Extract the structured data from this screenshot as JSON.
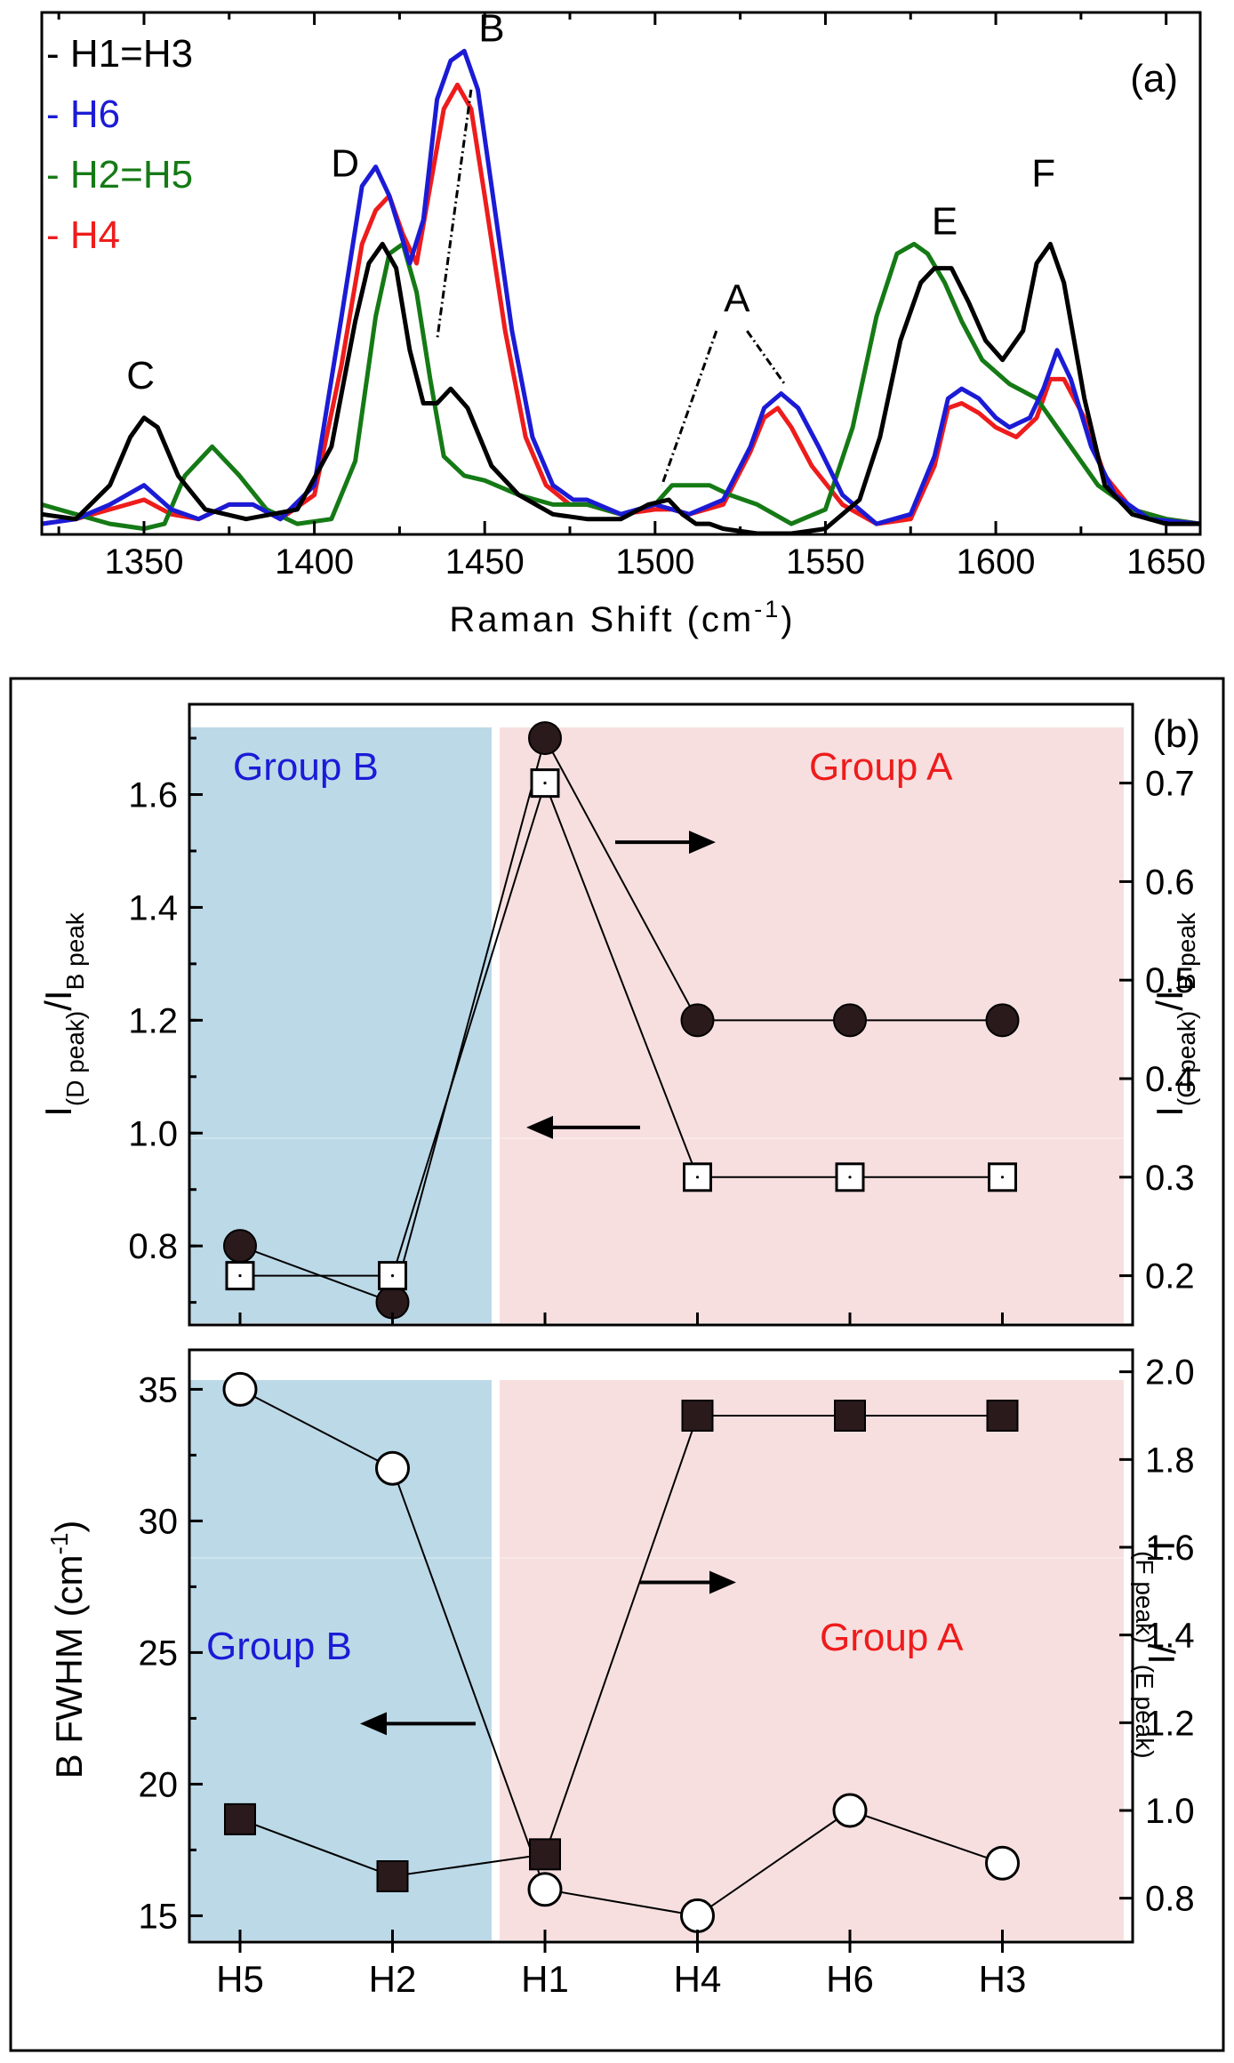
{
  "chart_data": [
    {
      "type": "line",
      "panel_label": "(a)",
      "title": "",
      "xlabel": "Raman Shift (cm",
      "xlabel_sup": "-1",
      "xlabel_end": ")",
      "ylabel": "",
      "xlim": [
        1320,
        1660
      ],
      "ylim": [
        0,
        1.08
      ],
      "x_ticks": [
        1350,
        1400,
        1450,
        1500,
        1550,
        1600,
        1650
      ],
      "legend_position": "top-left",
      "series": [
        {
          "name": "H1=H3",
          "legend": "- H1=H3",
          "color": "#000000",
          "x": [
            1320,
            1330,
            1340,
            1346,
            1350,
            1354,
            1360,
            1368,
            1380,
            1395,
            1405,
            1412,
            1416,
            1420,
            1424,
            1428,
            1432,
            1436,
            1440,
            1445,
            1452,
            1460,
            1470,
            1480,
            1490,
            1498,
            1504,
            1508,
            1512,
            1516,
            1520,
            1530,
            1540,
            1550,
            1560,
            1566,
            1572,
            1578,
            1582,
            1587,
            1592,
            1597,
            1602,
            1608,
            1612,
            1616,
            1620,
            1626,
            1632,
            1640,
            1650,
            1660
          ],
          "y": [
            0.04,
            0.03,
            0.1,
            0.2,
            0.24,
            0.22,
            0.12,
            0.05,
            0.03,
            0.05,
            0.18,
            0.44,
            0.56,
            0.6,
            0.55,
            0.38,
            0.27,
            0.27,
            0.3,
            0.26,
            0.14,
            0.08,
            0.04,
            0.03,
            0.03,
            0.06,
            0.07,
            0.04,
            0.02,
            0.02,
            0.01,
            0.0,
            0.0,
            0.01,
            0.07,
            0.2,
            0.4,
            0.52,
            0.55,
            0.55,
            0.48,
            0.4,
            0.36,
            0.42,
            0.56,
            0.6,
            0.52,
            0.28,
            0.1,
            0.04,
            0.02,
            0.02
          ]
        },
        {
          "name": "H6",
          "legend": "- H6",
          "color": "#1b1bd6",
          "x": [
            1320,
            1330,
            1340,
            1350,
            1358,
            1366,
            1375,
            1382,
            1390,
            1400,
            1408,
            1414,
            1418,
            1422,
            1428,
            1432,
            1436,
            1440,
            1444,
            1448,
            1452,
            1458,
            1464,
            1470,
            1476,
            1480,
            1490,
            1500,
            1505,
            1510,
            1520,
            1528,
            1532,
            1537,
            1542,
            1548,
            1555,
            1565,
            1575,
            1582,
            1586,
            1590,
            1595,
            1600,
            1604,
            1610,
            1614,
            1618,
            1622,
            1628,
            1635,
            1645,
            1660
          ],
          "y": [
            0.02,
            0.03,
            0.06,
            0.1,
            0.05,
            0.03,
            0.06,
            0.06,
            0.03,
            0.1,
            0.45,
            0.72,
            0.76,
            0.7,
            0.56,
            0.65,
            0.9,
            0.98,
            1.0,
            0.92,
            0.72,
            0.42,
            0.2,
            0.1,
            0.07,
            0.07,
            0.04,
            0.06,
            0.05,
            0.04,
            0.07,
            0.18,
            0.26,
            0.29,
            0.26,
            0.18,
            0.08,
            0.02,
            0.04,
            0.16,
            0.28,
            0.3,
            0.28,
            0.24,
            0.22,
            0.24,
            0.3,
            0.38,
            0.32,
            0.18,
            0.08,
            0.03,
            0.02
          ]
        },
        {
          "name": "H2=H5",
          "legend": "- H2=H5",
          "color": "#157a15",
          "x": [
            1320,
            1330,
            1340,
            1350,
            1356,
            1362,
            1370,
            1378,
            1386,
            1395,
            1405,
            1412,
            1418,
            1422,
            1426,
            1430,
            1434,
            1438,
            1444,
            1450,
            1460,
            1470,
            1480,
            1490,
            1500,
            1505,
            1510,
            1516,
            1522,
            1530,
            1540,
            1550,
            1558,
            1565,
            1571,
            1576,
            1580,
            1585,
            1590,
            1596,
            1604,
            1612,
            1620,
            1630,
            1640,
            1650,
            1660
          ],
          "y": [
            0.06,
            0.04,
            0.02,
            0.01,
            0.02,
            0.12,
            0.18,
            0.12,
            0.05,
            0.02,
            0.03,
            0.15,
            0.45,
            0.58,
            0.6,
            0.5,
            0.32,
            0.16,
            0.12,
            0.11,
            0.08,
            0.06,
            0.06,
            0.04,
            0.06,
            0.1,
            0.1,
            0.1,
            0.08,
            0.06,
            0.02,
            0.05,
            0.22,
            0.45,
            0.58,
            0.6,
            0.58,
            0.52,
            0.44,
            0.36,
            0.31,
            0.28,
            0.2,
            0.1,
            0.05,
            0.03,
            0.02
          ]
        },
        {
          "name": "H4",
          "legend": "- H4",
          "color": "#ee1c1c",
          "x": [
            1320,
            1330,
            1340,
            1350,
            1358,
            1366,
            1375,
            1382,
            1390,
            1400,
            1408,
            1414,
            1418,
            1422,
            1426,
            1430,
            1434,
            1438,
            1442,
            1446,
            1450,
            1456,
            1462,
            1468,
            1475,
            1480,
            1490,
            1500,
            1505,
            1510,
            1520,
            1528,
            1532,
            1536,
            1540,
            1546,
            1555,
            1565,
            1575,
            1582,
            1586,
            1590,
            1595,
            1600,
            1606,
            1612,
            1616,
            1620,
            1626,
            1632,
            1640,
            1650,
            1660
          ],
          "y": [
            0.02,
            0.03,
            0.05,
            0.07,
            0.04,
            0.03,
            0.06,
            0.06,
            0.03,
            0.08,
            0.35,
            0.6,
            0.67,
            0.7,
            0.62,
            0.56,
            0.72,
            0.88,
            0.93,
            0.88,
            0.7,
            0.42,
            0.2,
            0.1,
            0.06,
            0.06,
            0.04,
            0.05,
            0.05,
            0.04,
            0.06,
            0.17,
            0.24,
            0.26,
            0.22,
            0.14,
            0.06,
            0.02,
            0.03,
            0.14,
            0.26,
            0.27,
            0.25,
            0.22,
            0.2,
            0.24,
            0.32,
            0.32,
            0.24,
            0.12,
            0.05,
            0.03,
            0.02
          ]
        }
      ],
      "annotations": [
        {
          "text": "C",
          "x": 1349,
          "y": 0.3
        },
        {
          "text": "D",
          "x": 1409,
          "y": 0.74
        },
        {
          "text": "B",
          "x": 1452,
          "y": 1.02
        },
        {
          "text": "A",
          "x": 1524,
          "y": 0.46
        },
        {
          "text": "E",
          "x": 1585,
          "y": 0.62
        },
        {
          "text": "F",
          "x": 1614,
          "y": 0.72
        }
      ],
      "dashed_lines": [
        {
          "from": [
            1446,
            0.92
          ],
          "to": [
            1436,
            0.4
          ]
        },
        {
          "from": [
            1518,
            0.42
          ],
          "to": [
            1502,
            0.1
          ]
        },
        {
          "from": [
            1527,
            0.42
          ],
          "to": [
            1538,
            0.31
          ]
        }
      ]
    },
    {
      "type": "scatter",
      "panel_label": "(b)",
      "categories": [
        "H5",
        "H2",
        "H1",
        "H4",
        "H6",
        "H3"
      ],
      "ylabel_left": "I",
      "ylabel_left_sub1": "(D peak)",
      "ylabel_left_mid": "/I",
      "ylabel_left_sub2": "B peak",
      "ylabel_right": "I",
      "ylabel_right_sub1": "(C peak)",
      "ylabel_right_mid": "/I",
      "ylabel_right_sub2": "B peak",
      "ylim_left": [
        0.66,
        1.76
      ],
      "ylim_right": [
        0.15,
        0.78
      ],
      "left_ticks": [
        "0.8",
        "1.0",
        "1.2",
        "1.4",
        "1.6"
      ],
      "right_ticks": [
        "0.2",
        "0.3",
        "0.4",
        "0.5",
        "0.6",
        "0.7"
      ],
      "group_b_label": "Group B",
      "group_a_label": "Group A",
      "group_b_color": "#bcd9e8",
      "group_a_color": "#f7dfe0",
      "series": [
        {
          "name": "I(D peak)/I(B peak)",
          "axis": "left",
          "marker": "filled-circle",
          "values": [
            0.8,
            0.7,
            1.7,
            1.2,
            1.2,
            1.2
          ]
        },
        {
          "name": "I(C peak)/I(B peak)",
          "axis": "right",
          "marker": "open-square",
          "values": [
            0.2,
            0.2,
            0.7,
            0.3,
            0.3,
            0.3
          ]
        }
      ],
      "arrows": [
        {
          "direction": "right",
          "target_axis": "right",
          "near_category": "H4",
          "y_right": 0.64
        },
        {
          "direction": "left",
          "target_axis": "left",
          "near_category": "H1",
          "y_left": 1.01
        }
      ]
    },
    {
      "type": "scatter",
      "categories": [
        "H5",
        "H2",
        "H1",
        "H4",
        "H6",
        "H3"
      ],
      "ylabel_left": "B FWHM (cm",
      "ylabel_left_sup": "-1",
      "ylabel_left_end": ")",
      "ylabel_right": "I",
      "ylabel_right_sub1": "(F peak)",
      "ylabel_right_mid": "/I",
      "ylabel_right_sub2": "(E peak)",
      "ylim_left": [
        14,
        36.5
      ],
      "ylim_right": [
        0.7,
        2.05
      ],
      "left_ticks": [
        "15",
        "20",
        "25",
        "30",
        "35"
      ],
      "right_ticks": [
        "0.8",
        "1.0",
        "1.2",
        "1.4",
        "1.6",
        "1.8",
        "2.0"
      ],
      "group_b_label": "Group B",
      "group_a_label": "Group A",
      "series": [
        {
          "name": "B FWHM",
          "axis": "left",
          "marker": "open-circle",
          "values": [
            35,
            32,
            16,
            15,
            19,
            17
          ]
        },
        {
          "name": "I(F peak)/I(E peak)",
          "axis": "right",
          "marker": "filled-square",
          "values": [
            0.98,
            0.85,
            0.9,
            1.9,
            1.9,
            1.9
          ]
        }
      ],
      "arrows": [
        {
          "direction": "right",
          "target_axis": "right",
          "near_category": "H4",
          "y_right": 1.52
        },
        {
          "direction": "left",
          "target_axis": "left",
          "near_category": "H2",
          "y_left": 22.3
        }
      ]
    }
  ]
}
